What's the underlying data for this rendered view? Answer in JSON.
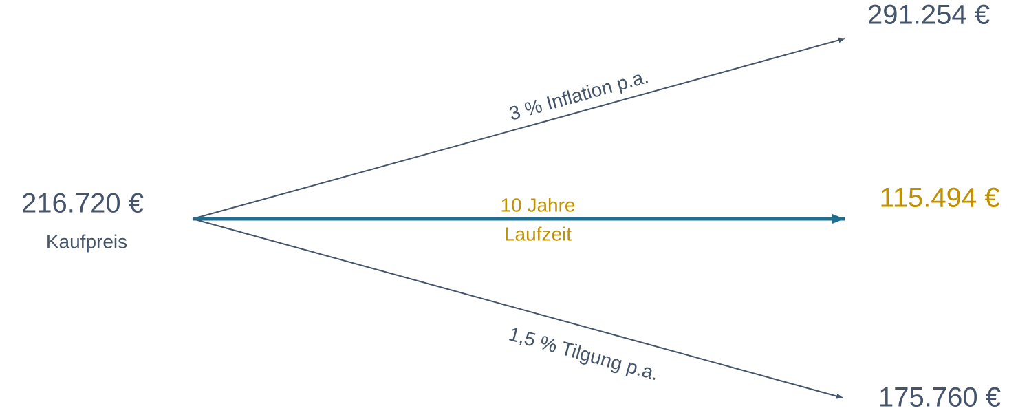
{
  "start": {
    "value": "216.720 €",
    "label": "Kaufpreis"
  },
  "top": {
    "value": "291.254 €",
    "edge_label": "3 % Inflation p.a."
  },
  "middle": {
    "value": "115.494 €",
    "edge_label": [
      "10 Jahre",
      "Laufzeit"
    ]
  },
  "bottom": {
    "value": "175.760 €",
    "edge_label": "1,5 % Tilgung p.a."
  }
}
